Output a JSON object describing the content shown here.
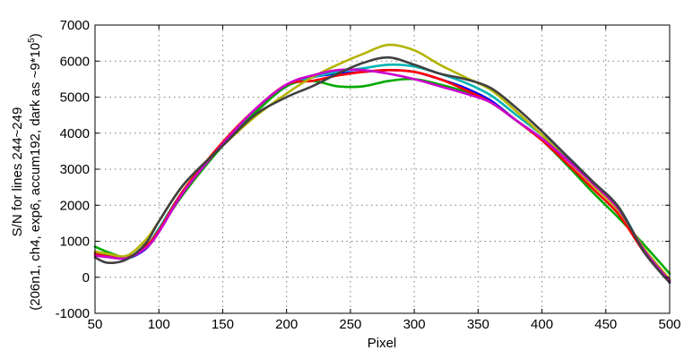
{
  "chart_data": {
    "type": "line",
    "title": "",
    "xlabel": "Pixel",
    "ylabel_line1": "S/N for lines 244~249",
    "ylabel_line2_prefix": "(206n1, ch4, exp6, accum192, dark as ~9*10",
    "ylabel_line2_exp": "5",
    "ylabel_line2_suffix": ")",
    "xlim": [
      50,
      500
    ],
    "ylim": [
      -1000,
      7000
    ],
    "xticks": [
      50,
      100,
      150,
      200,
      250,
      300,
      350,
      400,
      450,
      500
    ],
    "yticks": [
      -1000,
      0,
      1000,
      2000,
      3000,
      4000,
      5000,
      6000,
      7000
    ],
    "grid": true,
    "series": [
      {
        "color": "#0000ff",
        "x": [
          50,
          60,
          75,
          90,
          100,
          120,
          150,
          175,
          200,
          220,
          240,
          260,
          280,
          300,
          320,
          340,
          360,
          380,
          400,
          420,
          440,
          460,
          480,
          500
        ],
        "y": [
          700,
          600,
          520,
          800,
          1300,
          2400,
          3700,
          4600,
          5300,
          5550,
          5650,
          5700,
          5750,
          5700,
          5500,
          5250,
          4900,
          4350,
          3850,
          3300,
          2600,
          1900,
          700,
          -100
        ]
      },
      {
        "color": "#00b4b4",
        "x": [
          50,
          60,
          75,
          90,
          100,
          120,
          150,
          175,
          200,
          220,
          240,
          260,
          280,
          300,
          320,
          340,
          360,
          380,
          400,
          420,
          440,
          460,
          480,
          500
        ],
        "y": [
          650,
          600,
          520,
          850,
          1350,
          2450,
          3700,
          4600,
          5300,
          5550,
          5700,
          5800,
          5900,
          5850,
          5650,
          5400,
          5050,
          4500,
          3950,
          3350,
          2650,
          1950,
          750,
          -150
        ]
      },
      {
        "color": "#00aa00",
        "x": [
          50,
          60,
          75,
          90,
          100,
          120,
          150,
          175,
          200,
          220,
          240,
          260,
          280,
          300,
          320,
          340,
          360,
          380,
          400,
          420,
          440,
          460,
          480,
          500
        ],
        "y": [
          850,
          700,
          560,
          850,
          1300,
          2350,
          3650,
          4550,
          5300,
          5450,
          5300,
          5300,
          5450,
          5500,
          5350,
          5150,
          4850,
          4350,
          3800,
          3100,
          2350,
          1650,
          900,
          100
        ]
      },
      {
        "color": "#ff0000",
        "x": [
          50,
          60,
          75,
          90,
          100,
          120,
          150,
          175,
          200,
          220,
          240,
          260,
          280,
          300,
          320,
          340,
          360,
          380,
          400,
          420,
          440,
          460,
          480,
          500
        ],
        "y": [
          650,
          580,
          540,
          870,
          1300,
          2450,
          3750,
          4650,
          5350,
          5450,
          5600,
          5700,
          5750,
          5700,
          5500,
          5200,
          4850,
          4350,
          3800,
          3150,
          2450,
          1750,
          700,
          -100
        ]
      },
      {
        "color": "#b4b400",
        "x": [
          50,
          60,
          75,
          90,
          100,
          120,
          150,
          175,
          200,
          220,
          240,
          260,
          280,
          300,
          320,
          340,
          360,
          380,
          400,
          420,
          440,
          460,
          480,
          500
        ],
        "y": [
          720,
          650,
          600,
          1050,
          1550,
          2600,
          3650,
          4450,
          5100,
          5550,
          5900,
          6200,
          6450,
          6300,
          5900,
          5550,
          5200,
          4600,
          3950,
          3250,
          2550,
          1850,
          800,
          -50
        ]
      },
      {
        "color": "#cc00cc",
        "x": [
          50,
          60,
          75,
          90,
          100,
          120,
          150,
          175,
          200,
          220,
          240,
          260,
          280,
          300,
          320,
          340,
          360,
          380,
          400,
          420,
          440,
          460,
          480,
          500
        ],
        "y": [
          600,
          560,
          530,
          820,
          1250,
          2400,
          3700,
          4650,
          5350,
          5600,
          5750,
          5750,
          5650,
          5500,
          5300,
          5100,
          4850,
          4350,
          3850,
          3250,
          2600,
          1900,
          750,
          -100
        ]
      },
      {
        "color": "#404040",
        "x": [
          50,
          60,
          75,
          90,
          100,
          120,
          150,
          175,
          200,
          220,
          240,
          260,
          280,
          300,
          320,
          340,
          360,
          380,
          400,
          420,
          440,
          460,
          480,
          500
        ],
        "y": [
          550,
          400,
          500,
          950,
          1550,
          2600,
          3650,
          4500,
          5000,
          5300,
          5650,
          5950,
          6100,
          5900,
          5650,
          5500,
          5250,
          4700,
          4050,
          3350,
          2650,
          1950,
          700,
          -150
        ]
      }
    ]
  }
}
